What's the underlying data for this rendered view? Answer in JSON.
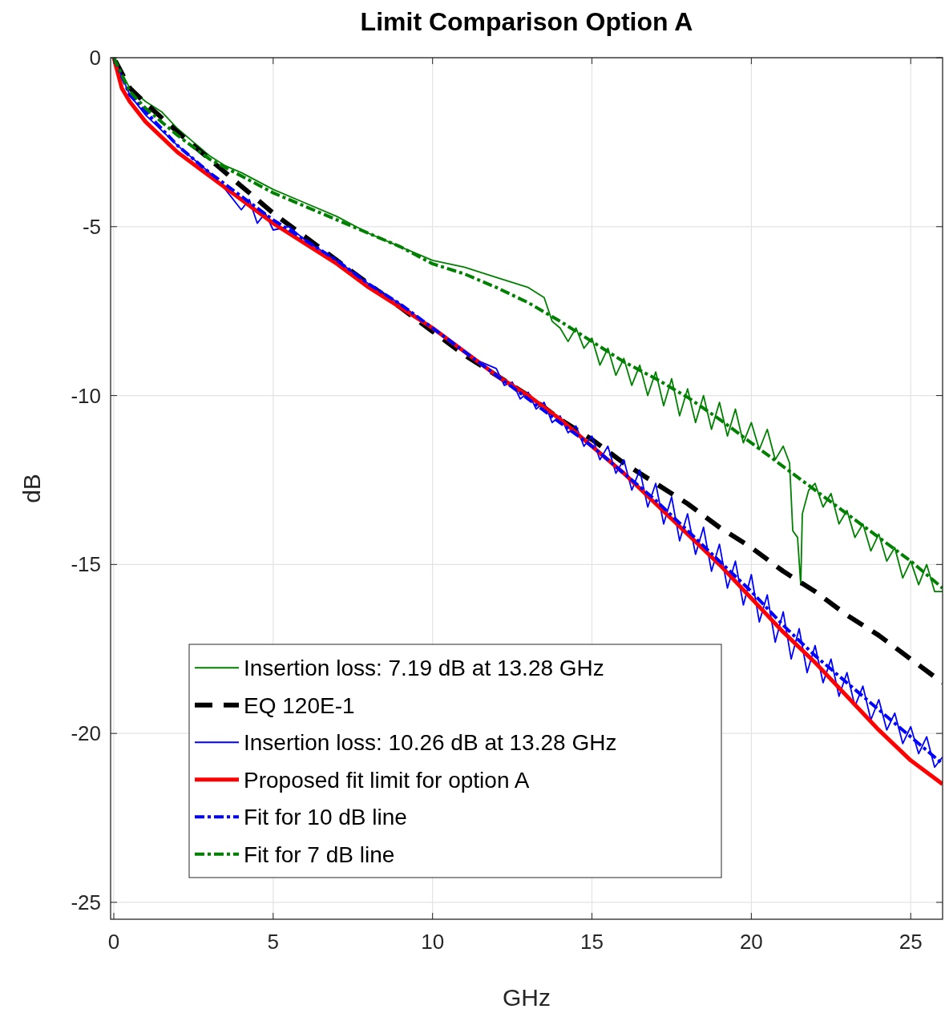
{
  "chart_data": {
    "type": "line",
    "title": "Limit Comparison Option A",
    "xlabel": "GHz",
    "ylabel": "dB",
    "xlim": [
      -0.1,
      26
    ],
    "ylim": [
      -25.5,
      0
    ],
    "xticks": [
      0,
      5,
      10,
      15,
      20,
      25
    ],
    "yticks": [
      0,
      -5,
      -10,
      -15,
      -20,
      -25
    ],
    "grid": true,
    "legend": "bottom left",
    "marker": "none",
    "series": [
      {
        "name": "Insertion loss: 7.19 dB at 13.28 GHz",
        "color": "#008000",
        "line_style": "solid",
        "x": [
          0,
          0.1,
          0.5,
          1,
          1.5,
          2,
          2.5,
          3,
          3.5,
          4,
          5,
          6,
          7,
          8,
          9,
          10,
          11,
          12,
          13,
          13.5,
          13.75,
          14,
          14.25,
          14.5,
          14.75,
          15,
          15.25,
          15.5,
          15.75,
          16,
          16.25,
          16.5,
          16.75,
          17,
          17.25,
          17.5,
          17.75,
          18,
          18.25,
          18.5,
          18.75,
          19,
          19.25,
          19.5,
          19.75,
          20,
          20.25,
          20.5,
          20.75,
          21,
          21.2,
          21.3,
          21.45,
          21.55,
          21.6,
          21.8,
          22,
          22.25,
          22.5,
          22.75,
          23,
          23.25,
          23.5,
          23.75,
          24,
          24.25,
          24.5,
          24.75,
          25,
          25.25,
          25.5,
          25.75,
          26
        ],
        "values": [
          0,
          -0.2,
          -0.9,
          -1.3,
          -1.6,
          -2.1,
          -2.5,
          -2.9,
          -3.2,
          -3.4,
          -3.9,
          -4.3,
          -4.7,
          -5.2,
          -5.6,
          -6.0,
          -6.2,
          -6.5,
          -6.8,
          -7.1,
          -7.8,
          -8.0,
          -8.4,
          -8.0,
          -8.6,
          -8.3,
          -9.1,
          -8.6,
          -9.4,
          -8.9,
          -9.7,
          -9.1,
          -10.0,
          -9.3,
          -10.3,
          -9.5,
          -10.6,
          -9.8,
          -10.8,
          -10.0,
          -11.0,
          -10.2,
          -11.2,
          -10.4,
          -11.4,
          -10.8,
          -11.6,
          -11.0,
          -11.9,
          -11.5,
          -12.0,
          -14.0,
          -14.2,
          -15.6,
          -13.5,
          -12.8,
          -12.6,
          -13.3,
          -12.9,
          -13.8,
          -13.4,
          -14.2,
          -13.8,
          -14.6,
          -14.1,
          -14.9,
          -14.5,
          -15.4,
          -14.9,
          -15.6,
          -15.0,
          -15.8,
          -15.8
        ]
      },
      {
        "name": "EQ 120E-1",
        "color": "#000000",
        "line_style": "dashed",
        "x": [
          0.05,
          0.5,
          1,
          2,
          3,
          4,
          5,
          6,
          7,
          8,
          9,
          10,
          11,
          12,
          13,
          14,
          15,
          16,
          17,
          18,
          19,
          20,
          21,
          22,
          23,
          24,
          25,
          26
        ],
        "values": [
          -0.1,
          -0.9,
          -1.35,
          -2.2,
          -3.0,
          -3.8,
          -4.6,
          -5.3,
          -6.0,
          -6.7,
          -7.4,
          -8.1,
          -8.8,
          -9.4,
          -10.0,
          -10.7,
          -11.3,
          -12.0,
          -12.6,
          -13.2,
          -13.9,
          -14.5,
          -15.2,
          -15.8,
          -16.5,
          -17.1,
          -17.8,
          -18.5
        ]
      },
      {
        "name": "Insertion loss: 10.26 dB at 13.28 GHz",
        "color": "#0000ff",
        "line_style": "solid",
        "x": [
          0,
          0.5,
          1,
          2,
          3,
          3.5,
          4,
          4.25,
          4.5,
          4.75,
          5,
          5.5,
          6,
          7,
          8,
          9,
          10,
          11,
          11.5,
          12,
          12.25,
          12.5,
          12.75,
          13,
          13.25,
          13.5,
          13.75,
          14,
          14.25,
          14.5,
          14.75,
          15,
          15.25,
          15.5,
          15.75,
          16,
          16.25,
          16.5,
          16.75,
          17,
          17.25,
          17.5,
          17.75,
          18,
          18.25,
          18.5,
          18.75,
          19,
          19.25,
          19.5,
          19.75,
          20,
          20.25,
          20.5,
          20.75,
          21,
          21.25,
          21.5,
          21.75,
          22,
          22.25,
          22.5,
          22.75,
          23,
          23.25,
          23.5,
          23.75,
          24,
          24.25,
          24.5,
          24.75,
          25,
          25.25,
          25.5,
          25.75,
          26
        ],
        "values": [
          0,
          -1.1,
          -1.7,
          -2.6,
          -3.4,
          -3.9,
          -4.5,
          -4.2,
          -4.9,
          -4.6,
          -5.1,
          -5.0,
          -5.4,
          -6.0,
          -6.7,
          -7.3,
          -8.0,
          -8.7,
          -9.0,
          -9.2,
          -9.7,
          -9.6,
          -10.1,
          -9.9,
          -10.4,
          -10.2,
          -10.8,
          -10.6,
          -11.1,
          -10.9,
          -11.5,
          -11.2,
          -11.9,
          -11.5,
          -12.3,
          -11.9,
          -12.8,
          -12.2,
          -13.3,
          -12.6,
          -13.8,
          -13.0,
          -14.3,
          -13.5,
          -14.7,
          -13.9,
          -15.2,
          -14.4,
          -15.7,
          -14.9,
          -16.2,
          -15.3,
          -16.7,
          -15.9,
          -17.3,
          -16.4,
          -17.8,
          -16.9,
          -18.2,
          -17.4,
          -18.5,
          -17.8,
          -18.9,
          -18.2,
          -19.2,
          -18.6,
          -19.6,
          -19.0,
          -19.9,
          -19.4,
          -20.3,
          -19.8,
          -20.6,
          -20.1,
          -21.0,
          -20.7
        ]
      },
      {
        "name": "Proposed fit limit for option A",
        "color": "#ff0000",
        "line_style": "solid",
        "x": [
          0,
          0.25,
          0.5,
          1,
          2,
          3,
          4,
          5,
          6,
          7,
          8,
          9,
          10,
          11,
          12,
          13,
          14,
          15,
          16,
          17,
          18,
          19,
          20,
          21,
          22,
          23,
          24,
          25,
          26
        ],
        "values": [
          0,
          -0.9,
          -1.3,
          -1.9,
          -2.8,
          -3.5,
          -4.2,
          -4.9,
          -5.5,
          -6.1,
          -6.8,
          -7.4,
          -8.0,
          -8.7,
          -9.4,
          -10.0,
          -10.7,
          -11.5,
          -12.3,
          -13.2,
          -14.1,
          -15.0,
          -16.0,
          -17.0,
          -17.9,
          -18.9,
          -19.9,
          -20.8,
          -21.5
        ]
      },
      {
        "name": "Fit for 10 dB line",
        "color": "#0000ff",
        "line_style": "dashed",
        "x": [
          0,
          0.5,
          1,
          2,
          3,
          4,
          5,
          6,
          7,
          8,
          9,
          10,
          11,
          12,
          13,
          14,
          15,
          16,
          17,
          18,
          19,
          20,
          21,
          22,
          23,
          24,
          25,
          26
        ],
        "values": [
          0,
          -1.1,
          -1.6,
          -2.6,
          -3.4,
          -4.1,
          -4.8,
          -5.4,
          -6.0,
          -6.7,
          -7.3,
          -8.0,
          -8.7,
          -9.4,
          -10.1,
          -10.8,
          -11.5,
          -12.3,
          -13.1,
          -14.0,
          -14.9,
          -15.8,
          -16.8,
          -17.7,
          -18.5,
          -19.3,
          -20.1,
          -20.9
        ]
      },
      {
        "name": "Fit for 7 dB line",
        "color": "#008000",
        "line_style": "dashed",
        "x": [
          0,
          0.5,
          1,
          2,
          3,
          4,
          5,
          6,
          7,
          8,
          9,
          10,
          11,
          12,
          13,
          14,
          15,
          16,
          17,
          18,
          19,
          20,
          21,
          22,
          23,
          24,
          25,
          26
        ],
        "values": [
          0,
          -1.0,
          -1.5,
          -2.3,
          -3.0,
          -3.5,
          -4.0,
          -4.4,
          -4.8,
          -5.2,
          -5.6,
          -6.1,
          -6.4,
          -6.8,
          -7.25,
          -7.8,
          -8.4,
          -9.0,
          -9.5,
          -10.05,
          -10.7,
          -11.4,
          -12.1,
          -12.8,
          -13.5,
          -14.2,
          -14.9,
          -15.7
        ]
      }
    ]
  }
}
